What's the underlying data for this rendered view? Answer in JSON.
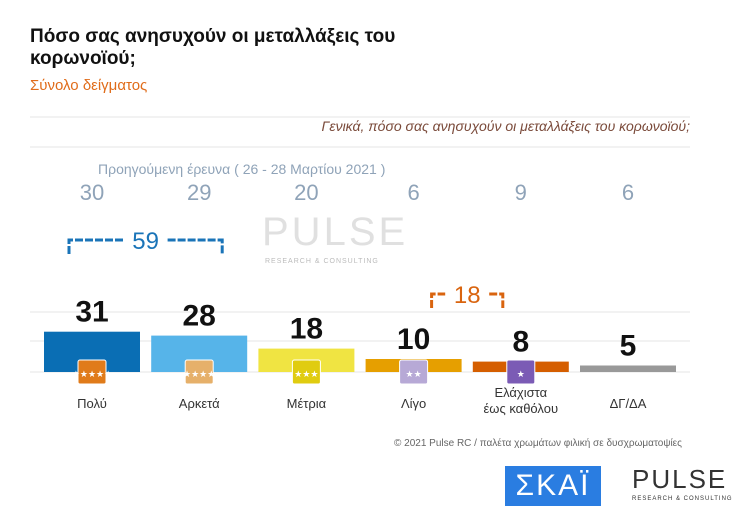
{
  "title": "Πόσο σας ανησυχούν οι μεταλλάξεις του κορωνοϊού;",
  "subtitle": "Σύνολο δείγματος",
  "question": "Γενικά, πόσο σας ανησυχούν οι μεταλλάξεις του κορωνοϊού;",
  "previous_label": "Προηγούμενη έρευνα  ( 26 - 28 Μαρτίου 2021 )",
  "copyright": "© 2021 Pulse RC  /  παλέτα χρωμάτων φιλική σε δυσχρωματοψίες",
  "logos": {
    "skai": "ΣΚΑΪ",
    "pulse": "PULSE",
    "pulse_sub": "RESEARCH & CONSULTING"
  },
  "chart_data": {
    "type": "bar",
    "categories": [
      "Πολύ",
      "Αρκετά",
      "Μέτρια",
      "Λίγο",
      "Ελάχιστα έως καθόλου",
      "ΔΓ/ΔΑ"
    ],
    "series": [
      {
        "values": [
          31,
          28,
          18,
          10,
          8,
          5
        ]
      }
    ],
    "previous_values": [
      30,
      29,
      20,
      6,
      9,
      6
    ],
    "groups": [
      {
        "label": "59",
        "categories": [
          "Πολύ",
          "Αρκετά"
        ],
        "color": "#1a74b8"
      },
      {
        "label": "18",
        "categories": [
          "Λίγο",
          "Ελάχιστα έως καθόλου"
        ],
        "color": "#d9640f"
      }
    ],
    "colors": [
      "#0a6eb4",
      "#56b4e9",
      "#f0e442",
      "#e69f00",
      "#d55e00",
      "#999999"
    ],
    "icon_colors": [
      "#e07b1a",
      "#e6b06a",
      "#e0cc10",
      "#b7a9d6",
      "#7b5bb5",
      ""
    ],
    "icon_stars": [
      5,
      4,
      3,
      2,
      1,
      0
    ]
  }
}
